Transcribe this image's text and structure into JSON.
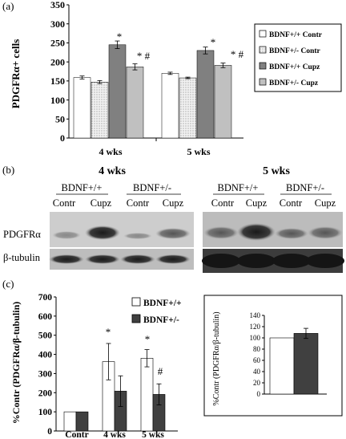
{
  "panel_labels": {
    "a": "(a)",
    "b": "(b)",
    "c": "(c)"
  },
  "panel_a": {
    "ylabel": "PDGFRα+ cells",
    "y_ticks": [
      "0",
      "50",
      "100",
      "150",
      "200",
      "250",
      "300",
      "350"
    ],
    "groups": [
      "4 wks",
      "5 wks"
    ],
    "legend": [
      "BDNF+/+ Contr",
      "BDNF+/- Contr",
      "BDNF+/+ Cupz",
      "BDNF+/- Cupz"
    ],
    "annotations": [
      "*",
      "* #",
      "*",
      "* #"
    ]
  },
  "panel_b": {
    "groups": [
      "4 wks",
      "5 wks"
    ],
    "genotypes": [
      "BDNF+/+",
      "BDNF+/-",
      "BDNF+/+",
      "BDNF+/-"
    ],
    "conditions": [
      "Contr",
      "Cupz",
      "Contr",
      "Cupz",
      "Contr",
      "Cupz",
      "Contr",
      "Cupz"
    ],
    "row_labels": [
      "PDGFRα",
      "β-tubulin"
    ]
  },
  "panel_c": {
    "ylabel": "%Contr (PDGFRα/β-tubulin)",
    "y_ticks": [
      "0",
      "100",
      "200",
      "300",
      "400",
      "500",
      "600",
      "700"
    ],
    "categories": [
      "Contr",
      "4 wks",
      "5 wks"
    ],
    "legend": [
      "BDNF+/+",
      "BDNF+/-"
    ],
    "annotations": [
      "*",
      "*",
      "#"
    ],
    "inset": {
      "ylabel": "%Contr (PDGFRα/β-tubulin)",
      "y_ticks": [
        "0",
        "20",
        "40",
        "60",
        "80",
        "100",
        "120",
        "140"
      ]
    }
  },
  "chart_data": [
    {
      "type": "bar",
      "categories": [
        "4 wks",
        "5 wks"
      ],
      "ylabel": "PDGFRα+ cells",
      "ylim": [
        0,
        350
      ],
      "legend_position": "right",
      "series": [
        {
          "name": "BDNF+/+ Contr",
          "values": [
            159,
            170
          ],
          "errors": [
            4,
            3
          ],
          "color": "#ffffff"
        },
        {
          "name": "BDNF+/- Contr",
          "values": [
            147,
            158
          ],
          "errors": [
            4,
            2
          ],
          "color": "#e2e2e2"
        },
        {
          "name": "BDNF+/+ Cupz",
          "values": [
            245,
            230
          ],
          "errors": [
            10,
            9
          ],
          "color": "#808080"
        },
        {
          "name": "BDNF+/- Cupz",
          "values": [
            187,
            191
          ],
          "errors": [
            8,
            6
          ],
          "color": "#c0c0c0"
        }
      ]
    },
    {
      "type": "bar",
      "categories": [
        "Contr",
        "4 wks",
        "5 wks"
      ],
      "ylabel": "%Contr (PDGFRα/β-tubulin)",
      "ylim": [
        0,
        700
      ],
      "legend_position": "top-right",
      "series": [
        {
          "name": "BDNF+/+",
          "values": [
            100,
            362,
            380
          ],
          "errors": [
            0,
            95,
            45
          ],
          "color": "#ffffff"
        },
        {
          "name": "BDNF+/-",
          "values": [
            100,
            208,
            191
          ],
          "errors": [
            0,
            80,
            55
          ],
          "color": "#404040"
        }
      ]
    },
    {
      "type": "bar",
      "categories": [
        ""
      ],
      "ylabel": "%Contr (PDGFRα/β-tubulin)",
      "ylim": [
        0,
        140
      ],
      "series": [
        {
          "name": "BDNF+/+",
          "values": [
            100
          ],
          "errors": [
            0
          ],
          "color": "#ffffff"
        },
        {
          "name": "BDNF+/-",
          "values": [
            108
          ],
          "errors": [
            9
          ],
          "color": "#404040"
        }
      ]
    }
  ]
}
